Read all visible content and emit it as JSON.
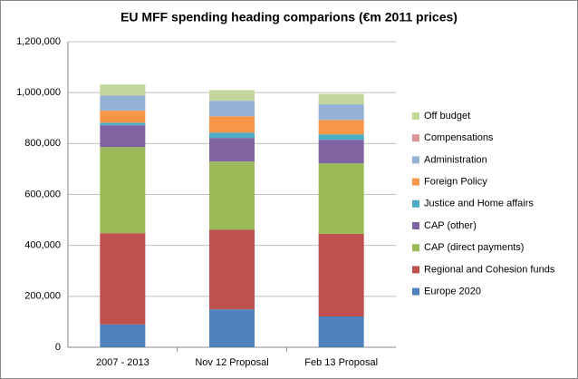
{
  "chart_data": {
    "type": "stacked_bar",
    "title": "EU MFF spending heading comparions (€m 2011 prices)",
    "categories": [
      "2007 - 2013",
      "Nov 12 Proposal",
      "Feb 13 Proposal"
    ],
    "series": [
      {
        "name": "Europe 2020",
        "color": "#4f81bd",
        "values": [
          90000,
          149000,
          121000
        ]
      },
      {
        "name": "Regional and Cohesion funds",
        "color": "#c0504d",
        "values": [
          358000,
          313000,
          324000
        ]
      },
      {
        "name": "CAP (direct payments)",
        "color": "#9bbb59",
        "values": [
          338000,
          267000,
          277000
        ]
      },
      {
        "name": "CAP (other)",
        "color": "#8064a2",
        "values": [
          86000,
          93000,
          93000
        ]
      },
      {
        "name": "Justice and Home affairs",
        "color": "#4bacc6",
        "values": [
          10000,
          21000,
          21000
        ]
      },
      {
        "name": "Foreign Policy",
        "color": "#f79646",
        "values": [
          47000,
          64000,
          57000
        ]
      },
      {
        "name": "Administration",
        "color": "#95b3d7",
        "values": [
          60000,
          61000,
          61000
        ]
      },
      {
        "name": "Compensations",
        "color": "#d99694",
        "values": [
          1000,
          0,
          0
        ]
      },
      {
        "name": "Off budget",
        "color": "#c3d69b",
        "values": [
          42000,
          42000,
          41000
        ]
      }
    ],
    "ylim": [
      0,
      1200000
    ],
    "yticks": [
      0,
      {
        "value": 200000,
        "label": "200,000"
      },
      {
        "value": 400000,
        "label": "400,000"
      },
      {
        "value": 600000,
        "label": "600,000"
      },
      {
        "value": 800000,
        "label": "800,000"
      },
      {
        "value": 1000000,
        "label": "1,000,000"
      },
      {
        "value": 1200000,
        "label": "1,200,000"
      }
    ],
    "grid": true
  }
}
